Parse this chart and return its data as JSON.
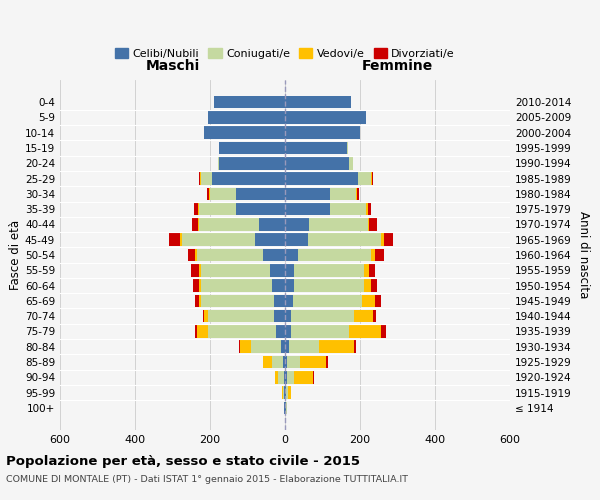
{
  "age_groups": [
    "100+",
    "95-99",
    "90-94",
    "85-89",
    "80-84",
    "75-79",
    "70-74",
    "65-69",
    "60-64",
    "55-59",
    "50-54",
    "45-49",
    "40-44",
    "35-39",
    "30-34",
    "25-29",
    "20-24",
    "15-19",
    "10-14",
    "5-9",
    "0-4"
  ],
  "birth_years": [
    "≤ 1914",
    "1915-1919",
    "1920-1924",
    "1925-1929",
    "1930-1934",
    "1935-1939",
    "1940-1944",
    "1945-1949",
    "1950-1954",
    "1955-1959",
    "1960-1964",
    "1965-1969",
    "1970-1974",
    "1975-1979",
    "1980-1984",
    "1985-1989",
    "1990-1994",
    "1995-1999",
    "2000-2004",
    "2005-2009",
    "2010-2014"
  ],
  "maschi": {
    "celibi": [
      2,
      2,
      3,
      5,
      10,
      25,
      30,
      30,
      35,
      40,
      60,
      80,
      70,
      130,
      130,
      195,
      175,
      175,
      215,
      205,
      190
    ],
    "coniugati": [
      2,
      3,
      15,
      30,
      80,
      180,
      175,
      195,
      190,
      185,
      175,
      195,
      160,
      100,
      70,
      30,
      5,
      2,
      0,
      0,
      0
    ],
    "vedovi": [
      0,
      2,
      10,
      25,
      30,
      30,
      10,
      5,
      5,
      5,
      5,
      5,
      2,
      2,
      2,
      2,
      0,
      0,
      0,
      0,
      0
    ],
    "divorziati": [
      0,
      0,
      0,
      0,
      2,
      5,
      5,
      10,
      15,
      20,
      20,
      30,
      15,
      10,
      5,
      2,
      0,
      0,
      0,
      0,
      0
    ]
  },
  "femmine": {
    "nubili": [
      2,
      2,
      5,
      5,
      10,
      15,
      15,
      20,
      25,
      25,
      35,
      60,
      65,
      120,
      120,
      195,
      170,
      165,
      200,
      215,
      175
    ],
    "coniugate": [
      2,
      5,
      20,
      35,
      80,
      155,
      170,
      185,
      185,
      185,
      195,
      195,
      155,
      95,
      70,
      35,
      10,
      2,
      0,
      0,
      0
    ],
    "vedove": [
      2,
      10,
      50,
      70,
      95,
      85,
      50,
      35,
      20,
      15,
      10,
      8,
      5,
      5,
      3,
      2,
      0,
      0,
      0,
      0,
      0
    ],
    "divorziate": [
      0,
      0,
      2,
      5,
      5,
      15,
      8,
      15,
      15,
      15,
      25,
      25,
      20,
      10,
      5,
      2,
      0,
      0,
      0,
      0,
      0
    ]
  },
  "colors": {
    "celibi": "#4472a8",
    "coniugati": "#c5d9a0",
    "vedovi": "#ffc000",
    "divorziati": "#cc0000"
  },
  "legend_labels": [
    "Celibi/Nubili",
    "Coniugati/e",
    "Vedovi/e",
    "Divorziati/e"
  ],
  "title": "Popolazione per età, sesso e stato civile - 2015",
  "subtitle": "COMUNE DI MONTALE (PT) - Dati ISTAT 1° gennaio 2015 - Elaborazione TUTTITALIA.IT",
  "ylabel": "Fasce di età",
  "ylabel_right": "Anni di nascita",
  "xlabel_maschi": "Maschi",
  "xlabel_femmine": "Femmine",
  "xlim": 600,
  "background_color": "#f5f5f5"
}
